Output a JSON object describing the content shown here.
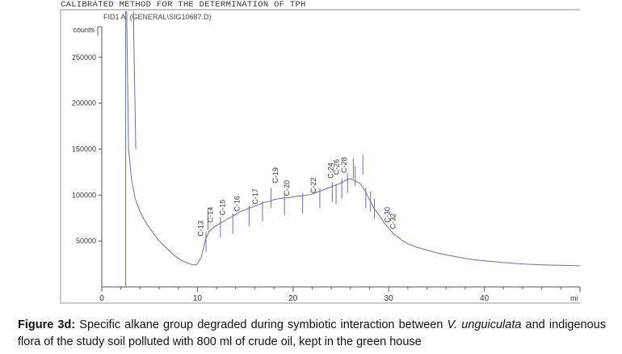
{
  "header": "CALIBRATED METHOD FOR THE DETERMINATION OF TPH",
  "chart_data": {
    "type": "line",
    "signal_label": "FID1 A, (GENERAL\\SIG10687.D)",
    "ylabel": "counts",
    "xlabel": "mi",
    "xlim": [
      0,
      50
    ],
    "ylim": [
      0,
      300000
    ],
    "x_ticks": [
      0,
      10,
      20,
      30,
      40
    ],
    "y_ticks": [
      50000,
      100000,
      150000,
      200000,
      250000
    ],
    "y_tick_labels": [
      "50000",
      "100000",
      "150000",
      "200000",
      "250000"
    ],
    "x_tick_labels": [
      "0",
      "10",
      "20",
      "30",
      "40"
    ],
    "series": [
      {
        "x": [
          2.6,
          2.8,
          3.1,
          3.5,
          4.0,
          4.5,
          5.0,
          5.5,
          6.0,
          6.5,
          7.0,
          7.5,
          8.0,
          8.5,
          9.0,
          9.5,
          9.9,
          10.4,
          10.8,
          11.2,
          11.6,
          12.0,
          12.5,
          13.0,
          13.5,
          14.0,
          14.5,
          15.0,
          15.5,
          16.0,
          16.5,
          17.0,
          17.5,
          18.0,
          18.5,
          19.0,
          19.5,
          20.0,
          20.5,
          21.0,
          21.5,
          22.0,
          22.5,
          23.0,
          23.5,
          24.0,
          24.5,
          25.0,
          25.5,
          26.0,
          26.5,
          27.0,
          27.5,
          28.0,
          28.5,
          29.0,
          29.5,
          30.0,
          30.5,
          31.0,
          31.5,
          32.0,
          33.0,
          34.0,
          35.0,
          36.0,
          37.0,
          38.0,
          39.0,
          40.0,
          42.0,
          44.0,
          46.0,
          48.0,
          50.0
        ],
        "y": [
          300000,
          150000,
          118000,
          96000,
          82000,
          72000,
          64000,
          57000,
          50000,
          45000,
          40000,
          35000,
          31000,
          28000,
          26000,
          24000,
          24000,
          32000,
          50000,
          60000,
          64000,
          67000,
          70000,
          73000,
          76000,
          79000,
          82000,
          84000,
          86000,
          88000,
          90000,
          92000,
          93000,
          95000,
          96000,
          97000,
          97000,
          98000,
          99000,
          99000,
          100000,
          101000,
          103000,
          105000,
          107000,
          109000,
          111000,
          113000,
          116000,
          118000,
          115000,
          113000,
          105000,
          95000,
          85000,
          78000,
          70000,
          64000,
          58000,
          54000,
          50000,
          47000,
          43000,
          40000,
          37000,
          35000,
          33000,
          31000,
          29500,
          28500,
          26500,
          25000,
          24000,
          23500,
          23000
        ]
      }
    ],
    "spikes": [
      {
        "x": 10.9,
        "y": 60000
      },
      {
        "x": 11.1,
        "y": 84000
      },
      {
        "x": 12.4,
        "y": 76000
      },
      {
        "x": 13.7,
        "y": 80000
      },
      {
        "x": 15.4,
        "y": 88000
      },
      {
        "x": 16.8,
        "y": 93000
      },
      {
        "x": 17.7,
        "y": 108000
      },
      {
        "x": 19.1,
        "y": 100000
      },
      {
        "x": 21.0,
        "y": 102000
      },
      {
        "x": 22.8,
        "y": 108000
      },
      {
        "x": 24.1,
        "y": 114000
      },
      {
        "x": 24.5,
        "y": 112000
      },
      {
        "x": 25.1,
        "y": 118000
      },
      {
        "x": 25.7,
        "y": 124000
      },
      {
        "x": 26.3,
        "y": 140000
      },
      {
        "x": 26.5,
        "y": 132000
      },
      {
        "x": 27.3,
        "y": 144000
      },
      {
        "x": 27.6,
        "y": 108000
      },
      {
        "x": 28.1,
        "y": 104000
      },
      {
        "x": 28.5,
        "y": 96000
      }
    ],
    "solvent_peak": {
      "x": [
        2.5,
        3.3
      ],
      "y": 300000
    },
    "annotations": [
      {
        "label": "C-13",
        "x": 10.6,
        "y": 55000
      },
      {
        "label": "C-14",
        "x": 11.6,
        "y": 70000
      },
      {
        "label": "C-15",
        "x": 12.9,
        "y": 78000
      },
      {
        "label": "C-16",
        "x": 14.4,
        "y": 82000
      },
      {
        "label": "C-17",
        "x": 16.3,
        "y": 90000
      },
      {
        "label": "C-19",
        "x": 18.4,
        "y": 113000
      },
      {
        "label": "C-20",
        "x": 19.6,
        "y": 99000
      },
      {
        "label": "C-22",
        "x": 22.4,
        "y": 102000
      },
      {
        "label": "C-24",
        "x": 24.2,
        "y": 118000
      },
      {
        "label": "C-26",
        "x": 24.8,
        "y": 122000
      },
      {
        "label": "C-28",
        "x": 25.6,
        "y": 124000
      },
      {
        "label": "C-30",
        "x": 30.1,
        "y": 70000
      },
      {
        "label": "C-32",
        "x": 30.7,
        "y": 63000
      }
    ]
  },
  "caption": {
    "figure_label": "Figure 3d:",
    "part1": " Specific alkane group degraded during symbiotic interaction between ",
    "species": "V. unguiculata",
    "part2": " and indigenous flora of the study soil polluted with 800 ml of crude oil, kept in the green house"
  }
}
